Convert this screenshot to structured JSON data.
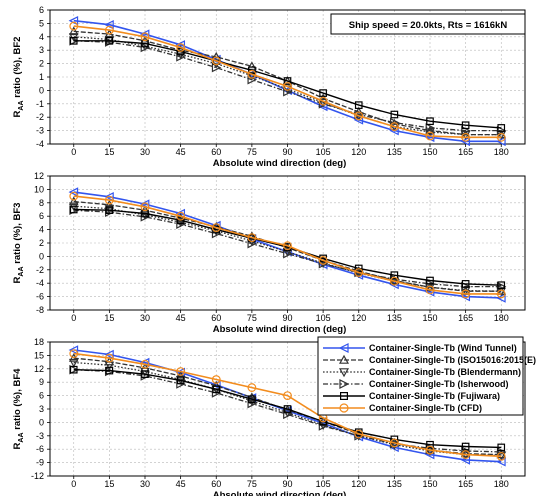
{
  "figure": {
    "annotation": "Ship speed = 20.0kts, Rts = 1616kN",
    "xlabel": "Absolute wind direction (deg)"
  },
  "legend": {
    "position": "inside-top-right of bottom panel",
    "entries": [
      "Container-Single-Tb (Wind Tunnel)",
      "Container-Single-Tb (ISO15016:2015(E)",
      "Container-Single-Tb (Blendermann)",
      "Container-Single-Tb (Isherwood)",
      "Container-Single-Tb (Fujiwara)",
      "Container-Single-Tb (CFD)"
    ]
  },
  "series_styles": [
    {
      "color": "#3355ee",
      "marker": "triangle-left",
      "dash": "solid",
      "width": 1.6
    },
    {
      "color": "#333333",
      "marker": "triangle-up",
      "dash": "dash",
      "width": 1.3
    },
    {
      "color": "#333333",
      "marker": "triangle-down",
      "dash": "dot",
      "width": 1.3
    },
    {
      "color": "#333333",
      "marker": "triangle-right",
      "dash": "dashdot",
      "width": 1.3
    },
    {
      "color": "#000000",
      "marker": "square",
      "dash": "solid",
      "width": 1.4
    },
    {
      "color": "#f28c1e",
      "marker": "circle",
      "dash": "solid",
      "width": 1.6
    }
  ],
  "chart_data": [
    {
      "type": "line",
      "ylabel": "R_AA ratio (%), BF2",
      "ylabel_main": "R",
      "ylabel_sub": "AA",
      "ylabel_rest": " ratio (%), BF2",
      "x": [
        0,
        15,
        30,
        45,
        60,
        75,
        90,
        105,
        120,
        135,
        150,
        165,
        180
      ],
      "ylim": [
        -4,
        6
      ],
      "yticks": [
        6,
        5,
        4,
        3,
        2,
        1,
        0,
        -1,
        -2,
        -3,
        -4
      ],
      "grid": true,
      "series": [
        {
          "name": "Container-Single-Tb (Wind Tunnel)",
          "values": [
            5.2,
            4.9,
            4.2,
            3.4,
            2.3,
            1.2,
            0.0,
            -1.2,
            -2.2,
            -3.0,
            -3.5,
            -3.8,
            -3.8
          ]
        },
        {
          "name": "Container-Single-Tb (ISO15016:2015(E)",
          "values": [
            4.4,
            4.2,
            3.7,
            3.0,
            2.5,
            1.8,
            0.7,
            -0.6,
            -1.6,
            -2.5,
            -3.0,
            -3.3,
            -3.3
          ]
        },
        {
          "name": "Container-Single-Tb (Blendermann)",
          "values": [
            4.0,
            3.8,
            3.3,
            2.7,
            2.0,
            1.1,
            0.1,
            -0.9,
            -1.9,
            -2.7,
            -3.1,
            -3.3,
            -3.3
          ]
        },
        {
          "name": "Container-Single-Tb (Isherwood)",
          "values": [
            3.7,
            3.6,
            3.2,
            2.5,
            1.7,
            0.8,
            -0.1,
            -1.0,
            -1.8,
            -2.4,
            -2.8,
            -3.0,
            -3.0
          ]
        },
        {
          "name": "Container-Single-Tb (Fujiwara)",
          "values": [
            3.7,
            3.7,
            3.5,
            2.9,
            2.2,
            1.5,
            0.7,
            -0.2,
            -1.1,
            -1.8,
            -2.3,
            -2.6,
            -2.8
          ]
        },
        {
          "name": "Container-Single-Tb (CFD)",
          "values": [
            4.8,
            4.5,
            4.0,
            3.2,
            2.2,
            1.2,
            0.3,
            -0.8,
            -1.9,
            -2.7,
            -3.4,
            -3.5,
            -3.5
          ]
        }
      ]
    },
    {
      "type": "line",
      "ylabel": "R_AA ratio (%), BF3",
      "ylabel_main": "R",
      "ylabel_sub": "AA",
      "ylabel_rest": " ratio (%), BF3",
      "x": [
        0,
        15,
        30,
        45,
        60,
        75,
        90,
        105,
        120,
        135,
        150,
        165,
        180
      ],
      "ylim": [
        -8,
        12
      ],
      "yticks": [
        12,
        10,
        8,
        6,
        4,
        2,
        0,
        -2,
        -4,
        -6,
        -8
      ],
      "grid": true,
      "series": [
        {
          "name": "Container-Single-Tb (Wind Tunnel)",
          "values": [
            9.6,
            8.9,
            7.8,
            6.4,
            4.6,
            2.6,
            0.7,
            -1.2,
            -2.8,
            -4.2,
            -5.3,
            -6.0,
            -6.2
          ]
        },
        {
          "name": "Container-Single-Tb (ISO15016:2015(E)",
          "values": [
            8.2,
            7.7,
            6.9,
            5.7,
            4.4,
            3.0,
            1.3,
            -0.6,
            -2.2,
            -3.6,
            -4.6,
            -5.2,
            -5.2
          ]
        },
        {
          "name": "Container-Single-Tb (Blendermann)",
          "values": [
            7.5,
            7.1,
            6.2,
            5.1,
            3.8,
            2.3,
            0.7,
            -1.0,
            -2.5,
            -3.7,
            -4.6,
            -5.1,
            -5.2
          ]
        },
        {
          "name": "Container-Single-Tb (Isherwood)",
          "values": [
            6.9,
            6.6,
            5.9,
            4.8,
            3.4,
            1.9,
            0.4,
            -1.1,
            -2.4,
            -3.4,
            -4.1,
            -4.5,
            -4.5
          ]
        },
        {
          "name": "Container-Single-Tb (Fujiwara)",
          "values": [
            7.0,
            6.9,
            6.4,
            5.4,
            4.0,
            2.7,
            1.4,
            -0.3,
            -1.8,
            -2.8,
            -3.6,
            -4.1,
            -4.3
          ]
        },
        {
          "name": "Container-Single-Tb (CFD)",
          "values": [
            9.0,
            8.4,
            7.4,
            6.0,
            4.3,
            2.8,
            1.6,
            -0.6,
            -2.4,
            -3.7,
            -5.0,
            -5.6,
            -5.6
          ]
        }
      ]
    },
    {
      "type": "line",
      "ylabel": "R_AA ratio (%), BF4",
      "ylabel_main": "R",
      "ylabel_sub": "AA",
      "ylabel_rest": " ratio (%), BF4",
      "x": [
        0,
        15,
        30,
        45,
        60,
        75,
        90,
        105,
        120,
        135,
        150,
        165,
        180
      ],
      "ylim": [
        -12,
        18
      ],
      "yticks": [
        18,
        15,
        12,
        9,
        6,
        3,
        0,
        -3,
        -6,
        -9,
        -12
      ],
      "grid": true,
      "series": [
        {
          "name": "Container-Single-Tb (Wind Tunnel)",
          "values": [
            16.2,
            15.2,
            13.4,
            11.2,
            8.4,
            5.5,
            2.6,
            -0.2,
            -3.2,
            -5.6,
            -7.2,
            -8.4,
            -8.8
          ]
        },
        {
          "name": "Container-Single-Tb (ISO15016:2015(E)",
          "values": [
            14.4,
            13.6,
            12.2,
            10.4,
            8.2,
            5.6,
            2.8,
            0.2,
            -2.6,
            -4.6,
            -6.2,
            -7.0,
            -7.2
          ]
        },
        {
          "name": "Container-Single-Tb (Blendermann)",
          "values": [
            13.4,
            12.8,
            11.4,
            9.6,
            7.4,
            4.8,
            2.2,
            -0.6,
            -3.0,
            -5.0,
            -6.4,
            -7.2,
            -7.4
          ]
        },
        {
          "name": "Container-Single-Tb (Isherwood)",
          "values": [
            11.8,
            11.4,
            10.4,
            8.6,
            6.6,
            4.2,
            1.8,
            -0.8,
            -3.0,
            -4.8,
            -5.8,
            -6.4,
            -6.6
          ]
        },
        {
          "name": "Container-Single-Tb (Fujiwara)",
          "values": [
            11.8,
            11.6,
            10.8,
            9.4,
            7.4,
            5.2,
            3.0,
            0.2,
            -2.2,
            -3.8,
            -5.0,
            -5.4,
            -5.6
          ]
        },
        {
          "name": "Container-Single-Tb (CFD)",
          "values": [
            15.4,
            14.4,
            13.0,
            11.4,
            9.6,
            7.8,
            6.0,
            1.0,
            -2.6,
            -4.6,
            -6.2,
            -7.2,
            -7.6
          ]
        }
      ]
    }
  ]
}
